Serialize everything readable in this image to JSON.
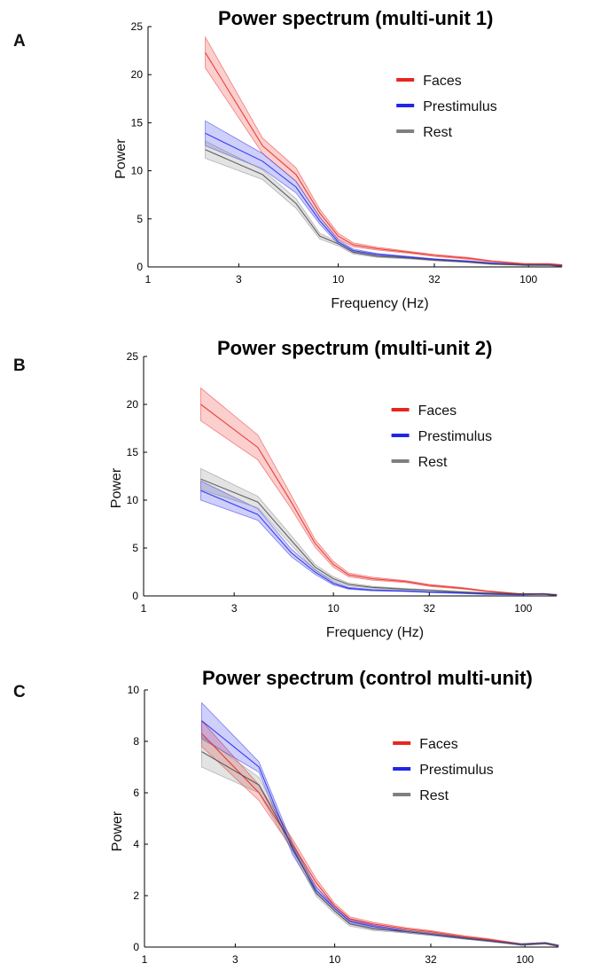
{
  "colors": {
    "faces": "#e8261f",
    "prestimulus": "#1f26e8",
    "rest": "#7f7f7f"
  },
  "chart_data": [
    {
      "type": "line",
      "panel_label": "A",
      "title": "Power spectrum (multi-unit 1)",
      "xlabel": "Frequency (Hz)",
      "ylabel": "Power",
      "x_scale": "log",
      "xlim": [
        1,
        150
      ],
      "ylim": [
        0,
        25
      ],
      "xticks": [
        1,
        3,
        10,
        32,
        100
      ],
      "xtick_labels": [
        "1",
        "3",
        "10",
        "32",
        "100"
      ],
      "yticks": [
        0,
        5,
        10,
        15,
        20,
        25
      ],
      "legend": {
        "position": "top-right",
        "entries": [
          "Faces",
          "Prestimulus",
          "Rest"
        ]
      },
      "x": [
        2,
        4,
        6,
        8,
        10,
        12,
        16,
        24,
        32,
        48,
        64,
        96,
        128,
        150
      ],
      "series": [
        {
          "name": "Faces",
          "color": "#e8261f",
          "values": [
            22.3,
            12.6,
            9.6,
            5.6,
            3.2,
            2.3,
            1.9,
            1.5,
            1.2,
            0.9,
            0.6,
            0.3,
            0.3,
            0.2
          ],
          "band": [
            1.6,
            0.8,
            0.7,
            0.4,
            0.3,
            0.2,
            0.15,
            0.1,
            0.1,
            0.1,
            0.05,
            0.05,
            0.05,
            0.05
          ]
        },
        {
          "name": "Prestimulus",
          "color": "#1f26e8",
          "values": [
            13.9,
            11.0,
            8.3,
            4.8,
            2.6,
            1.7,
            1.3,
            1.0,
            0.8,
            0.6,
            0.4,
            0.2,
            0.2,
            0.1
          ],
          "band": [
            1.3,
            0.8,
            0.6,
            0.35,
            0.2,
            0.15,
            0.1,
            0.08,
            0.05,
            0.05,
            0.05,
            0.05,
            0.05,
            0.05
          ]
        },
        {
          "name": "Rest",
          "color": "#7f7f7f",
          "values": [
            12.2,
            9.6,
            6.6,
            3.2,
            2.4,
            1.5,
            1.1,
            0.9,
            0.7,
            0.5,
            0.3,
            0.2,
            0.2,
            0.1
          ],
          "band": [
            0.9,
            0.5,
            0.5,
            0.3,
            0.2,
            0.15,
            0.1,
            0.08,
            0.05,
            0.05,
            0.05,
            0.05,
            0.05,
            0.05
          ]
        }
      ]
    },
    {
      "type": "line",
      "panel_label": "B",
      "title": "Power spectrum (multi-unit 2)",
      "xlabel": "Frequency (Hz)",
      "ylabel": "Power",
      "x_scale": "log",
      "xlim": [
        1,
        150
      ],
      "ylim": [
        0,
        25
      ],
      "xticks": [
        1,
        3,
        10,
        32,
        100
      ],
      "xtick_labels": [
        "1",
        "3",
        "10",
        "32",
        "100"
      ],
      "yticks": [
        0,
        5,
        10,
        15,
        20,
        25
      ],
      "legend": {
        "position": "top-right",
        "entries": [
          "Faces",
          "Prestimulus",
          "Rest"
        ]
      },
      "x": [
        2,
        4,
        6,
        8,
        10,
        12,
        16,
        24,
        32,
        48,
        64,
        96,
        128,
        150
      ],
      "series": [
        {
          "name": "Faces",
          "color": "#e8261f",
          "values": [
            20.0,
            15.5,
            9.8,
            5.5,
            3.3,
            2.2,
            1.8,
            1.5,
            1.1,
            0.8,
            0.5,
            0.2,
            0.2,
            0.1
          ],
          "band": [
            1.7,
            1.3,
            0.7,
            0.4,
            0.3,
            0.2,
            0.15,
            0.1,
            0.1,
            0.08,
            0.05,
            0.05,
            0.05,
            0.05
          ]
        },
        {
          "name": "Prestimulus",
          "color": "#1f26e8",
          "values": [
            11.0,
            8.5,
            4.5,
            2.5,
            1.3,
            0.8,
            0.6,
            0.5,
            0.4,
            0.3,
            0.2,
            0.15,
            0.2,
            0.1
          ],
          "band": [
            1.0,
            0.6,
            0.4,
            0.25,
            0.15,
            0.1,
            0.08,
            0.05,
            0.05,
            0.05,
            0.05,
            0.05,
            0.05,
            0.05
          ]
        },
        {
          "name": "Rest",
          "color": "#7f7f7f",
          "values": [
            12.2,
            9.8,
            5.8,
            3.0,
            1.8,
            1.2,
            0.9,
            0.7,
            0.6,
            0.4,
            0.3,
            0.2,
            0.2,
            0.1
          ],
          "band": [
            1.1,
            0.6,
            0.5,
            0.3,
            0.2,
            0.15,
            0.1,
            0.08,
            0.05,
            0.05,
            0.05,
            0.05,
            0.05,
            0.05
          ]
        }
      ]
    },
    {
      "type": "line",
      "panel_label": "C",
      "title": "Power spectrum (control multi-unit)",
      "xlabel": "Frequency (Hz)",
      "ylabel": "Power",
      "x_scale": "log",
      "xlim": [
        1,
        150
      ],
      "ylim": [
        0,
        10
      ],
      "xticks": [
        1,
        3,
        10,
        32,
        100
      ],
      "xtick_labels": [
        "1",
        "3",
        "10",
        "32",
        "100"
      ],
      "yticks": [
        0,
        2,
        4,
        6,
        8,
        10
      ],
      "legend": {
        "position": "top-right",
        "entries": [
          "Faces",
          "Prestimulus",
          "Rest"
        ]
      },
      "x": [
        2,
        4,
        6,
        8,
        10,
        12,
        16,
        24,
        32,
        48,
        64,
        96,
        128,
        150
      ],
      "series": [
        {
          "name": "Faces",
          "color": "#e8261f",
          "values": [
            8.3,
            6.0,
            4.0,
            2.5,
            1.6,
            1.1,
            0.9,
            0.7,
            0.6,
            0.4,
            0.3,
            0.1,
            0.15,
            0.05
          ],
          "band": [
            0.5,
            0.3,
            0.2,
            0.15,
            0.1,
            0.08,
            0.06,
            0.05,
            0.04,
            0.04,
            0.03,
            0.03,
            0.03,
            0.03
          ]
        },
        {
          "name": "Prestimulus",
          "color": "#1f26e8",
          "values": [
            8.8,
            7.0,
            3.8,
            2.2,
            1.5,
            1.0,
            0.8,
            0.6,
            0.5,
            0.35,
            0.25,
            0.1,
            0.15,
            0.05
          ],
          "band": [
            0.7,
            0.2,
            0.2,
            0.12,
            0.1,
            0.08,
            0.06,
            0.05,
            0.04,
            0.04,
            0.03,
            0.03,
            0.03,
            0.03
          ]
        },
        {
          "name": "Rest",
          "color": "#7f7f7f",
          "values": [
            7.6,
            6.3,
            3.9,
            2.1,
            1.4,
            0.9,
            0.7,
            0.6,
            0.5,
            0.35,
            0.25,
            0.1,
            0.15,
            0.05
          ],
          "band": [
            0.6,
            0.3,
            0.2,
            0.12,
            0.1,
            0.08,
            0.06,
            0.05,
            0.04,
            0.04,
            0.03,
            0.03,
            0.03,
            0.03
          ]
        }
      ]
    }
  ]
}
